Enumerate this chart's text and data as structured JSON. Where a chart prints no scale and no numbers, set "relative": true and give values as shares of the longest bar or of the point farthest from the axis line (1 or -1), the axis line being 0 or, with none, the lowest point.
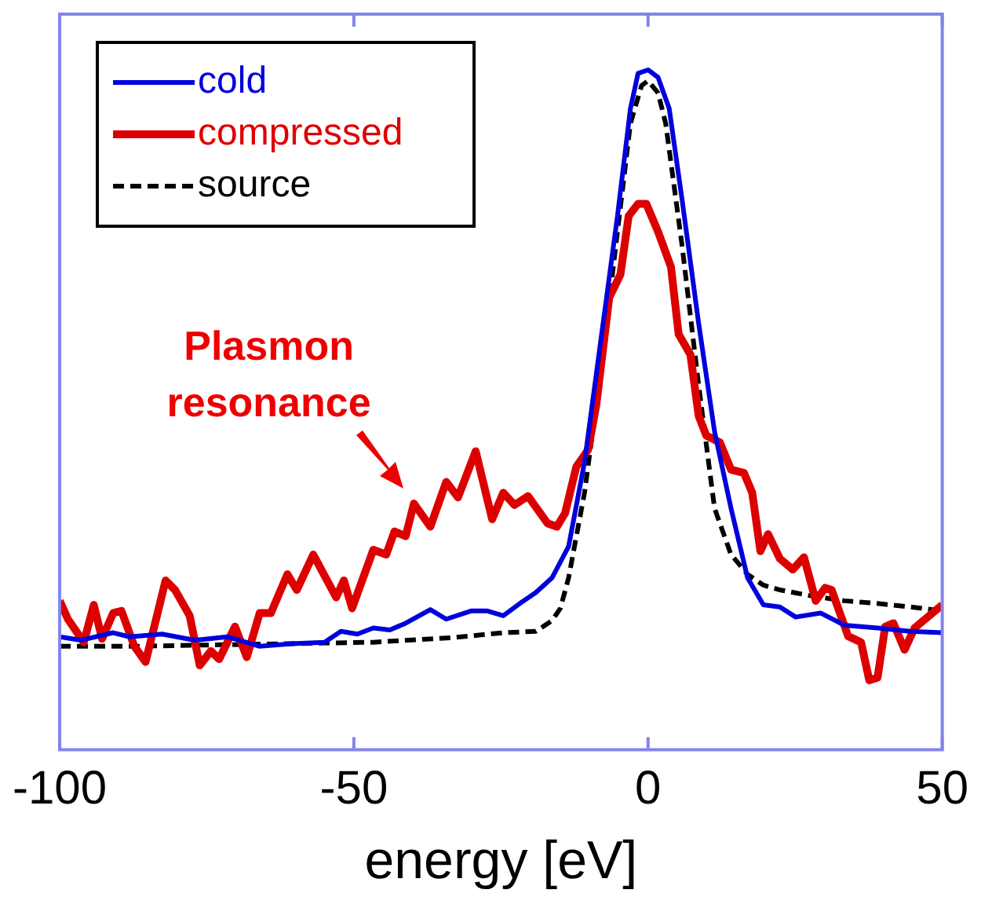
{
  "chart_data": {
    "type": "line",
    "relative": true,
    "xlabel": "energy [eV]",
    "xlim": [
      -100,
      50
    ],
    "xticks": [
      -100,
      -50,
      0,
      50
    ],
    "grid": false,
    "legend": "top left",
    "marker": "none",
    "annotations": [
      "Plasmon resonance"
    ],
    "series": [
      {
        "name": "cold",
        "color": "#0000dd",
        "line_style": "solid",
        "x": [
          -100,
          -96.4,
          -90.9,
          -88.1,
          -82.6,
          -77.1,
          -71.5,
          -66.0,
          -60.5,
          -55.0,
          -52.2,
          -49.4,
          -46.7,
          -43.9,
          -41.2,
          -37.0,
          -34.3,
          -30.1,
          -27.3,
          -24.6,
          -21.8,
          -19.1,
          -16.3,
          -13.5,
          -10.8,
          -8.0,
          -5.2,
          -3.0,
          -1.7,
          0,
          1.7,
          3.6,
          5.8,
          8.6,
          11.3,
          14.1,
          16.9,
          19.6,
          22.4,
          25.1,
          29.3,
          33.4,
          39.0,
          44.5,
          50
        ],
        "values": [
          0.166,
          0.161,
          0.172,
          0.166,
          0.17,
          0.161,
          0.166,
          0.152,
          0.156,
          0.158,
          0.174,
          0.17,
          0.179,
          0.176,
          0.186,
          0.206,
          0.192,
          0.204,
          0.204,
          0.197,
          0.215,
          0.231,
          0.253,
          0.299,
          0.423,
          0.604,
          0.785,
          0.943,
          0.995,
          1.0,
          0.989,
          0.943,
          0.808,
          0.627,
          0.468,
          0.355,
          0.253,
          0.213,
          0.21,
          0.195,
          0.201,
          0.183,
          0.179,
          0.174,
          0.172
        ]
      },
      {
        "name": "compressed",
        "color": "#dd0000",
        "line_style": "solid",
        "x": [
          -100,
          -98.6,
          -95.9,
          -94.2,
          -92.8,
          -90.9,
          -89.5,
          -87.3,
          -85.4,
          -82.0,
          -80.4,
          -77.9,
          -76.2,
          -74.3,
          -72.9,
          -70.2,
          -68.2,
          -66.0,
          -64.1,
          -61.3,
          -59.7,
          -56.9,
          -53.0,
          -51.7,
          -50.3,
          -46.7,
          -44.5,
          -43.1,
          -41.2,
          -39.8,
          -37.0,
          -34.3,
          -32.3,
          -29.3,
          -26.5,
          -24.6,
          -22.7,
          -20.4,
          -17.1,
          -15.5,
          -14.1,
          -12.2,
          -10.2,
          -8.8,
          -6.6,
          -4.7,
          -3.3,
          -1.7,
          -0.3,
          1.7,
          3.9,
          5.2,
          7.2,
          8.6,
          9.9,
          12.2,
          14.1,
          16.3,
          17.7,
          19.1,
          20.4,
          22.4,
          24.6,
          26.5,
          28.5,
          30.1,
          31.2,
          34.0,
          36.2,
          37.6,
          39.0,
          40.3,
          41.7,
          43.6,
          45.3,
          50
        ],
        "values": [
          0.219,
          0.192,
          0.158,
          0.213,
          0.163,
          0.201,
          0.204,
          0.152,
          0.129,
          0.249,
          0.235,
          0.197,
          0.124,
          0.145,
          0.133,
          0.181,
          0.136,
          0.201,
          0.201,
          0.258,
          0.235,
          0.287,
          0.224,
          0.249,
          0.208,
          0.294,
          0.287,
          0.321,
          0.314,
          0.362,
          0.328,
          0.394,
          0.371,
          0.439,
          0.339,
          0.378,
          0.36,
          0.373,
          0.333,
          0.328,
          0.348,
          0.416,
          0.441,
          0.507,
          0.665,
          0.699,
          0.785,
          0.803,
          0.803,
          0.762,
          0.71,
          0.611,
          0.581,
          0.491,
          0.462,
          0.452,
          0.412,
          0.407,
          0.378,
          0.292,
          0.317,
          0.281,
          0.265,
          0.283,
          0.219,
          0.238,
          0.235,
          0.167,
          0.158,
          0.102,
          0.106,
          0.181,
          0.186,
          0.147,
          0.179,
          0.213
        ]
      },
      {
        "name": "source",
        "color": "#000000",
        "line_style": "dashed",
        "x": [
          -100,
          -88.1,
          -74.3,
          -60.5,
          -46.7,
          -32.9,
          -24.6,
          -19.1,
          -16.3,
          -14.9,
          -13.5,
          -10.8,
          -8.0,
          -5.2,
          -3.0,
          -1.1,
          0,
          1.7,
          3.0,
          5.8,
          8.6,
          11.3,
          14.1,
          16.9,
          19.6,
          22.4,
          27.9,
          33.4,
          39.0,
          44.5,
          50
        ],
        "values": [
          0.152,
          0.152,
          0.154,
          0.156,
          0.158,
          0.165,
          0.172,
          0.174,
          0.19,
          0.208,
          0.253,
          0.378,
          0.559,
          0.762,
          0.921,
          0.977,
          0.984,
          0.966,
          0.921,
          0.74,
          0.536,
          0.355,
          0.287,
          0.258,
          0.242,
          0.235,
          0.226,
          0.219,
          0.215,
          0.21,
          0.204
        ]
      }
    ]
  }
}
